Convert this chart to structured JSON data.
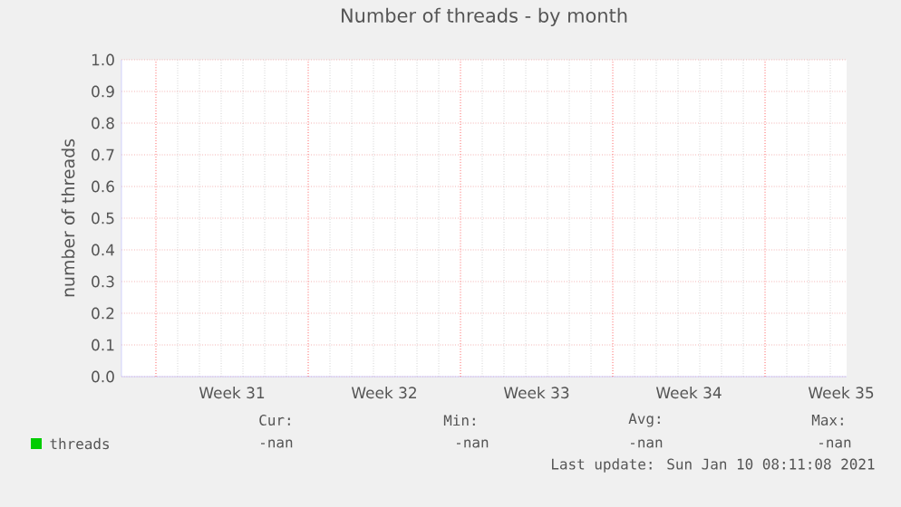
{
  "chart_data": {
    "type": "line",
    "title": "Number of threads - by month",
    "ylabel": "number of threads",
    "categories": [
      "Week 31",
      "Week 32",
      "Week 33",
      "Week 34",
      "Week 35"
    ],
    "ylim": [
      0,
      1.0
    ],
    "yticks": [
      {
        "value": 0,
        "label": "0.0"
      },
      {
        "value": 0.1,
        "label": "0.1"
      },
      {
        "value": 0.2,
        "label": "0.2"
      },
      {
        "value": 0.3,
        "label": "0.3"
      },
      {
        "value": 0.4,
        "label": "0.4"
      },
      {
        "value": 0.5,
        "label": "0.5"
      },
      {
        "value": 0.6,
        "label": "0.6"
      },
      {
        "value": 0.7,
        "label": "0.7"
      },
      {
        "value": 0.8,
        "label": "0.8"
      },
      {
        "value": 0.9,
        "label": "0.9"
      },
      {
        "value": 1.0,
        "label": "1.0"
      }
    ],
    "grid": true,
    "legend": "bottom left",
    "series": [
      {
        "name": "threads",
        "color": "#00cc00",
        "values": [
          null,
          null,
          null,
          null,
          null
        ]
      }
    ],
    "annotations": [
      "Cur:",
      "-nan",
      "Min:",
      "-nan",
      "Avg:",
      "-nan",
      "Max:",
      "-nan",
      "Last update: Sun Jan 10 08:11:08 2021"
    ]
  }
}
